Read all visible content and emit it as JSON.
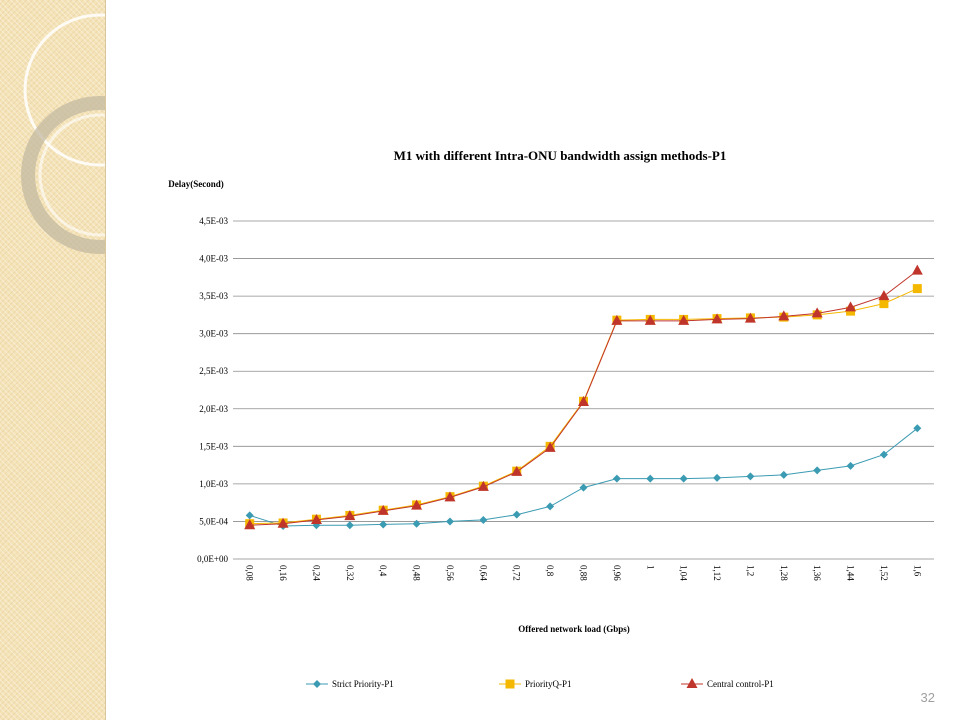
{
  "slide": {
    "page_number": "32"
  },
  "chart_data": {
    "type": "line",
    "title": "M1 with different Intra-ONU bandwidth assign methods-P1",
    "ylabel": "Delay(Second)",
    "xlabel": "Offered network load (Gbps)",
    "categories": [
      "0,08",
      "0,16",
      "0,24",
      "0,32",
      "0,4",
      "0,48",
      "0,56",
      "0,64",
      "0,72",
      "0,8",
      "0,88",
      "0,96",
      "1",
      "1,04",
      "1,12",
      "1,2",
      "1,28",
      "1,36",
      "1,44",
      "1,52",
      "1,6"
    ],
    "yticks": [
      "0,0E+00",
      "5,0E-04",
      "1,0E-03",
      "1,5E-03",
      "2,0E-03",
      "2,5E-03",
      "3,0E-03",
      "3,5E-03",
      "4,0E-03",
      "4,5E-03"
    ],
    "ylim": [
      0,
      0.0045
    ],
    "grid": true,
    "legend_position": "bottom",
    "series": [
      {
        "name": "Strict Priority-P1",
        "color": "#3b9bb2",
        "marker": "diamond",
        "values": [
          0.00058,
          0.00044,
          0.00045,
          0.00045,
          0.00046,
          0.00047,
          0.0005,
          0.00052,
          0.00059,
          0.0007,
          0.00095,
          0.00107,
          0.00107,
          0.00107,
          0.00108,
          0.0011,
          0.00112,
          0.00118,
          0.00124,
          0.00139,
          0.00174
        ]
      },
      {
        "name": "PriorityQ-P1",
        "color": "#f5b800",
        "marker": "square",
        "values": [
          0.00047,
          0.00048,
          0.00053,
          0.00058,
          0.00065,
          0.00072,
          0.00083,
          0.00097,
          0.00117,
          0.0015,
          0.0021,
          0.00318,
          0.00319,
          0.00319,
          0.0032,
          0.00321,
          0.00322,
          0.00325,
          0.0033,
          0.0034,
          0.0036
        ]
      },
      {
        "name": "Central control-P1",
        "color": "#c0352b",
        "marker": "triangle",
        "values": [
          0.00045,
          0.00047,
          0.00052,
          0.00057,
          0.00064,
          0.00071,
          0.00082,
          0.00096,
          0.00116,
          0.00148,
          0.00209,
          0.00317,
          0.00317,
          0.00317,
          0.00319,
          0.0032,
          0.00323,
          0.00327,
          0.00335,
          0.0035,
          0.00384
        ]
      }
    ]
  }
}
